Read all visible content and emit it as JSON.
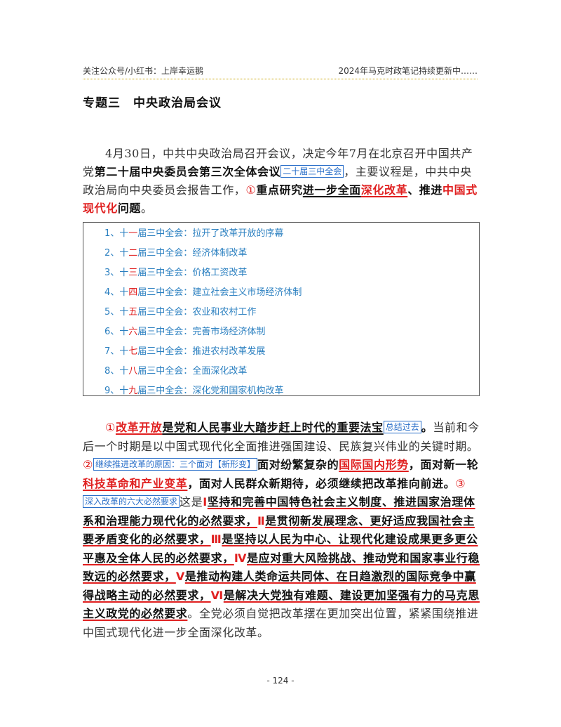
{
  "header": {
    "left": "关注公众号/小红书：上岸幸运鹅",
    "right": "2024年马克时政笔记持续更新中……"
  },
  "title": {
    "part1": "专题三",
    "part2": "中央政治局会议"
  },
  "para1": {
    "s1": "4月30日，中共中央政治局召开会议，决定今年7月在北京召开中国共产党",
    "s2": "第二十届中央委员会第三次全体会议",
    "note": "二十届三中全会",
    "s3": "，主要议程是，中共中央政治局向中央委员会报告工作，",
    "circ": "①",
    "s4": "重点研究",
    "s5": "进一步全面",
    "s6": "深化改革",
    "s7": "、推进",
    "s8": "中国式现代化",
    "s9": "问题",
    "s10": "。"
  },
  "plenums": [
    {
      "pre": "1、十",
      "ord": "一",
      "mid": "届三中全会：",
      "topic": "拉开了改革开放的序幕"
    },
    {
      "pre": "2、十",
      "ord": "二",
      "mid": "届三中全会：",
      "topic": "经济体制改革"
    },
    {
      "pre": "3、十",
      "ord": "三",
      "mid": "届三中全会：",
      "topic": "价格工资改革"
    },
    {
      "pre": "4、十",
      "ord": "四",
      "mid": "届三中全会：",
      "topic": "建立社会主义市场经济体制"
    },
    {
      "pre": "5、十",
      "ord": "五",
      "mid": "届三中全会：",
      "topic": "农业和农村工作"
    },
    {
      "pre": "6、十",
      "ord": "六",
      "mid": "届三中全会：",
      "topic": "完善市场经济体制"
    },
    {
      "pre": "7、十",
      "ord": "七",
      "mid": "届三中全会：",
      "topic": "推进农村改革发展"
    },
    {
      "pre": "8、十",
      "ord": "八",
      "mid": "届三中全会：",
      "topic": "全面深化改革"
    },
    {
      "pre": "9、十",
      "ord": "九",
      "mid": "届三中全会：",
      "topic": "深化党和国家机构改革"
    }
  ],
  "para2": {
    "c1": "①",
    "a1": "改革开放",
    "a2": "是党和人民事业大踏步赶上时代的重要法宝",
    "n1": "总结过去",
    "a3": "。",
    "a4": "当前和今后一个时期是以中国式现代化全面推进强国建设、民族复兴伟业的关键时期。",
    "c2": "②",
    "n2": "继续推进改革的原因：三个面对【新形变】",
    "b1": "面对纷繁复杂的",
    "b2": "国际国内形势",
    "b3": "，面对新一轮",
    "b4": "科技革命和产业变革",
    "b5": "，面对人民群众新期待，必须继续把改革推向前进。",
    "c3": "③",
    "n3": "深入改革的六大必然要求",
    "d0": "这是",
    "r1": "Ⅰ",
    "d1": "坚持和完善中国特色社会主义制度、推进国家治理体系和治理能力现代化的必然要求，",
    "r2": "Ⅱ",
    "d2": "是贯彻新发展理念、更好适应我国社会主要矛盾变化的必然要求，",
    "r3": "Ⅲ",
    "d3": "是坚持以人民为中心、让现代化建设成果更多更公平惠及全体人民的必然要求，",
    "r4": "Ⅳ",
    "d4": "是应对重大风险挑战、推动党和国家事业行稳致远的必然要求，",
    "r5": "Ⅴ",
    "d5": "是推动构建人类命运共同体、在日趋激烈的国际竞争中赢得战略主动的必然要求，",
    "r6": "Ⅵ",
    "d6": "是解决大党独有难题、建设更加坚强有力的马克思主义政党的必然要求",
    "d7": "。全党必须自觉把改革摆在更加突出位置，紧紧围绕推进中国式现代化进一步全面深化改革。"
  },
  "footer": {
    "page": "- 124 -"
  }
}
